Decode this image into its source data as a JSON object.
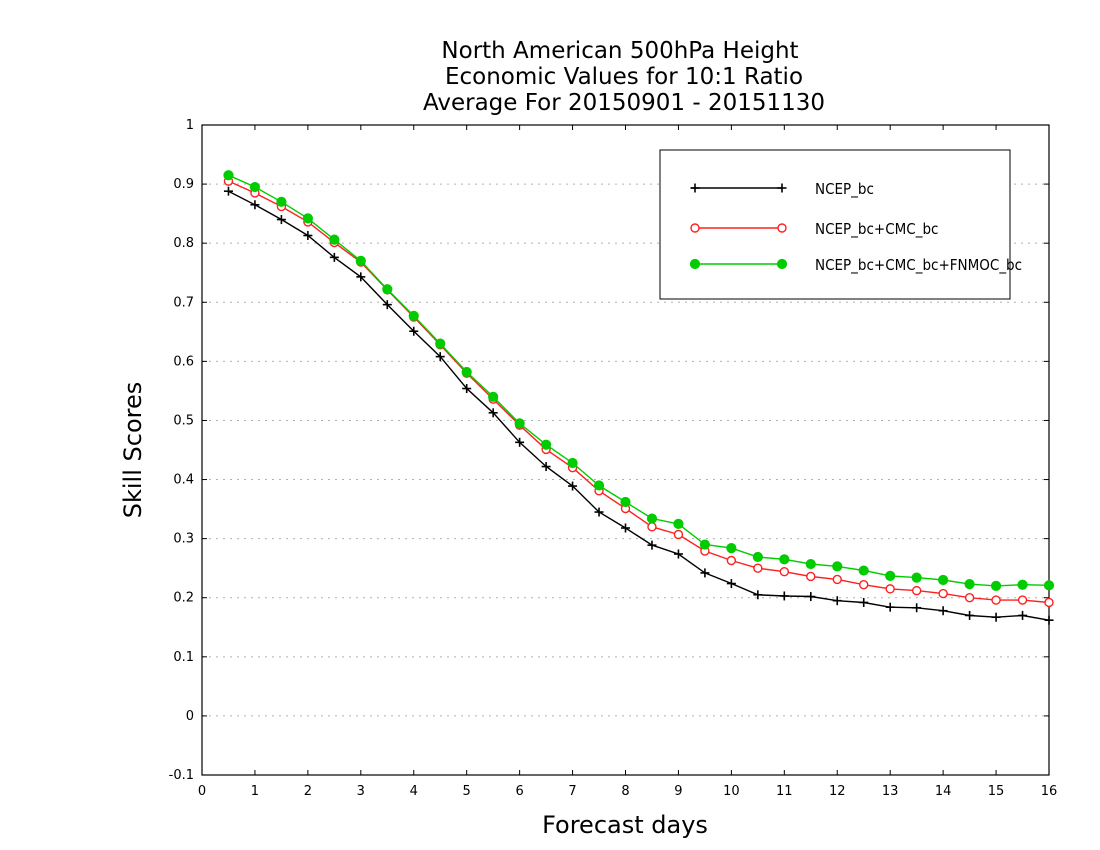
{
  "chart_data": {
    "type": "line",
    "title": [
      "North American 500hPa Height",
      "Economic Values for 10:1 Ratio",
      "Average For 20150901 - 20151130"
    ],
    "xlabel": "Forecast days",
    "ylabel": "Skill Scores",
    "xlim": [
      0,
      16
    ],
    "ylim": [
      -0.1,
      1
    ],
    "xticks": [
      0,
      1,
      2,
      3,
      4,
      5,
      6,
      7,
      8,
      9,
      10,
      11,
      12,
      13,
      14,
      15,
      16
    ],
    "yticks": [
      -0.1,
      0,
      0.1,
      0.2,
      0.3,
      0.4,
      0.5,
      0.6,
      0.7,
      0.8,
      0.9,
      1
    ],
    "ytick_labels": [
      "-0.1",
      "0",
      "0.1",
      "0.2",
      "0.3",
      "0.4",
      "0.5",
      "0.6",
      "0.7",
      "0.8",
      "0.9",
      "1"
    ],
    "grid": true,
    "legend_position": "top-right",
    "x": [
      0.5,
      1,
      1.5,
      2,
      2.5,
      3,
      3.5,
      4,
      4.5,
      5,
      5.5,
      6,
      6.5,
      7,
      7.5,
      8,
      8.5,
      9,
      9.5,
      10,
      10.5,
      11,
      11.5,
      12,
      12.5,
      13,
      13.5,
      14,
      14.5,
      15,
      15.5,
      16
    ],
    "series": [
      {
        "name": "NCEP_bc",
        "color": "#000000",
        "marker": "plus",
        "values": [
          0.888,
          0.865,
          0.84,
          0.813,
          0.776,
          0.743,
          0.696,
          0.651,
          0.608,
          0.554,
          0.513,
          0.463,
          0.422,
          0.389,
          0.345,
          0.318,
          0.289,
          0.274,
          0.242,
          0.224,
          0.205,
          0.203,
          0.202,
          0.195,
          0.192,
          0.184,
          0.183,
          0.178,
          0.17,
          0.167,
          0.17,
          0.162
        ]
      },
      {
        "name": "NCEP_bc+CMC_bc",
        "color": "#ff2020",
        "marker": "open-circle",
        "values": [
          0.905,
          0.885,
          0.862,
          0.836,
          0.801,
          0.768,
          0.721,
          0.675,
          0.628,
          0.58,
          0.536,
          0.492,
          0.451,
          0.42,
          0.381,
          0.351,
          0.32,
          0.307,
          0.279,
          0.263,
          0.25,
          0.244,
          0.236,
          0.231,
          0.222,
          0.215,
          0.212,
          0.207,
          0.2,
          0.196,
          0.196,
          0.192
        ]
      },
      {
        "name": "NCEP_bc+CMC_bc+FNMOC_bc",
        "color": "#00cc00",
        "marker": "filled-circle",
        "values": [
          0.915,
          0.895,
          0.87,
          0.842,
          0.806,
          0.77,
          0.722,
          0.677,
          0.63,
          0.582,
          0.54,
          0.495,
          0.459,
          0.428,
          0.39,
          0.362,
          0.334,
          0.325,
          0.29,
          0.284,
          0.269,
          0.265,
          0.257,
          0.253,
          0.246,
          0.237,
          0.234,
          0.23,
          0.223,
          0.22,
          0.222,
          0.221
        ]
      }
    ]
  }
}
